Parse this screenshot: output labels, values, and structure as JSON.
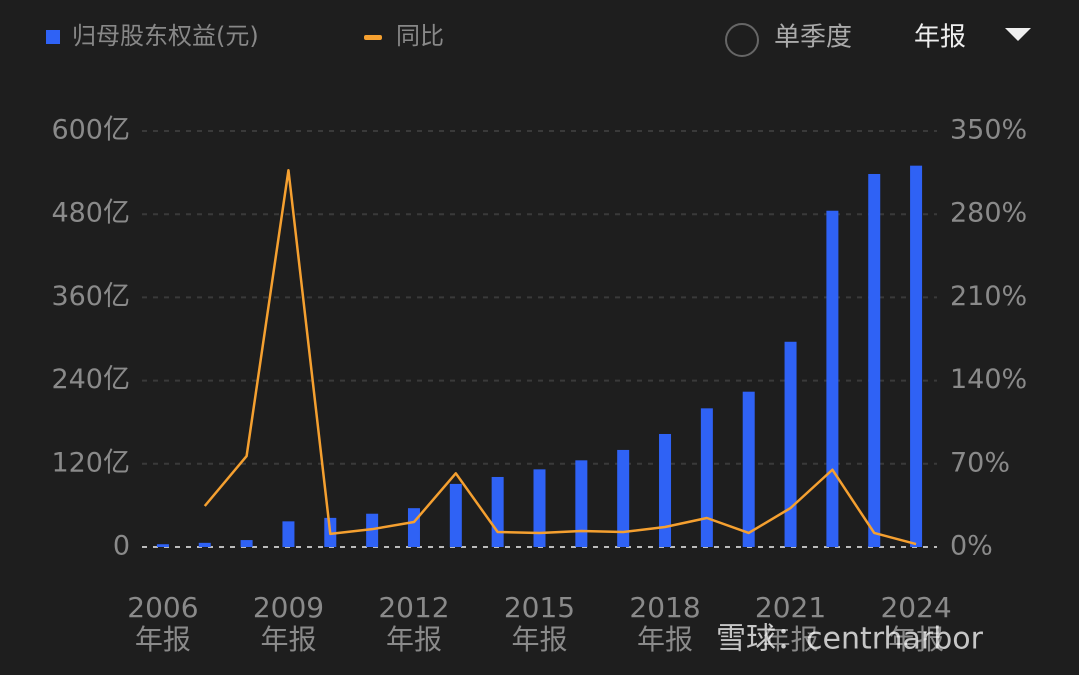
{
  "chart_data": {
    "type": "bar_line",
    "categories": [
      "2006",
      null,
      null,
      "2009",
      null,
      null,
      "2012",
      null,
      null,
      "2015",
      null,
      null,
      "2018",
      null,
      null,
      "2021",
      null,
      null,
      "2024"
    ],
    "category_suffix": "年报",
    "series": [
      {
        "name": "归母股东权益(元)",
        "color": "#2f62f5",
        "type": "bar",
        "values": [
          4,
          6,
          10,
          37,
          42,
          48,
          56,
          91,
          101,
          112,
          125,
          140,
          163,
          200,
          224,
          296,
          485,
          538,
          550
        ]
      },
      {
        "name": "同比",
        "color": "#f5a030",
        "type": "line",
        "axis": "y2",
        "values": [
          null,
          34.5,
          76.5,
          317,
          11,
          15,
          21,
          62,
          12.6,
          11.8,
          13.5,
          12.6,
          16.8,
          24.4,
          11.8,
          32.8,
          65,
          11.8,
          2.5
        ]
      }
    ],
    "ylim": [
      0,
      600
    ],
    "yticks": [
      0,
      {
        "value": 120,
        "label": "120亿"
      },
      {
        "value": 240,
        "label": "240亿"
      },
      {
        "value": 360,
        "label": "360亿"
      },
      {
        "value": 480,
        "label": "480亿"
      },
      {
        "value": 600,
        "label": "600亿"
      }
    ],
    "y2lim": [
      0,
      350
    ],
    "y2ticks": [
      {
        "value": 0,
        "label": "0%"
      },
      {
        "value": 70,
        "label": "70%"
      },
      {
        "value": 140,
        "label": "140%"
      },
      {
        "value": 210,
        "label": "210%"
      },
      {
        "value": 280,
        "label": "280%"
      },
      {
        "value": 350,
        "label": "350%"
      }
    ],
    "grid": true,
    "controls": {
      "quarterly": "单季度",
      "annual": "年报"
    },
    "watermark": "雪球：centrharbor"
  }
}
